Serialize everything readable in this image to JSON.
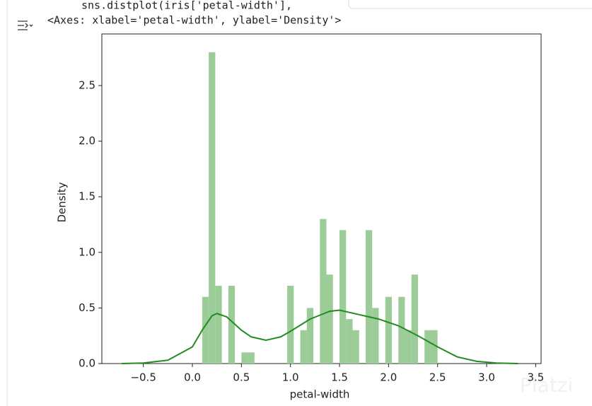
{
  "code": [
    "sns.distplot(iris['petal-width'],"
  ],
  "output": "<Axes: xlabel='petal-width', ylabel='Density'>",
  "watermark": "Platzi",
  "chart_data": {
    "type": "histogram",
    "xlabel": "petal-width",
    "ylabel": "Density",
    "bins": [
      0.1,
      0.1667,
      0.2333,
      0.3,
      0.3667,
      0.4333,
      0.5,
      0.5667,
      0.6333,
      0.7,
      0.7667,
      0.8333,
      0.9,
      0.9667,
      1.0333,
      1.1,
      1.1667,
      1.2333,
      1.3,
      1.3667,
      1.4333,
      1.5,
      1.5667,
      1.6333,
      1.7,
      1.7667,
      1.8333,
      1.9,
      1.9667,
      2.0333,
      2.1,
      2.1667,
      2.2333,
      2.3,
      2.3667,
      2.4333,
      2.5
    ],
    "values": [
      0.6,
      2.8,
      0.7,
      0,
      0.7,
      0,
      0.1,
      0.1,
      0,
      0,
      0,
      0,
      0,
      0.7,
      0,
      0.3,
      0.5,
      0,
      1.3,
      0.8,
      0,
      1.2,
      0.4,
      0.3,
      0,
      1.2,
      0.5,
      0,
      0.6,
      0,
      0.6,
      0.3,
      0.8,
      0,
      0.3,
      0.3
    ],
    "color": "#9ccc97",
    "kde": {
      "color": "#228b22",
      "x": [
        -0.72,
        -0.5,
        -0.25,
        0,
        0.1,
        0.2,
        0.25,
        0.35,
        0.5,
        0.6,
        0.75,
        0.9,
        1.0,
        1.2,
        1.4,
        1.5,
        1.7,
        1.9,
        2.1,
        2.3,
        2.5,
        2.7,
        2.9,
        3.1,
        3.32
      ],
      "y": [
        0,
        0.005,
        0.03,
        0.15,
        0.3,
        0.43,
        0.45,
        0.42,
        0.3,
        0.24,
        0.21,
        0.24,
        0.29,
        0.4,
        0.47,
        0.48,
        0.44,
        0.4,
        0.34,
        0.25,
        0.15,
        0.06,
        0.02,
        0.005,
        0
      ]
    },
    "xlim": [
      -0.923,
      3.555
    ],
    "ylim": [
      0,
      2.964
    ],
    "xticks": [
      {
        "value": -0.5,
        "label": "−0.5"
      },
      {
        "value": 0,
        "label": "0.0"
      },
      0.5,
      {
        "value": 1,
        "label": "1.0"
      },
      1.5,
      {
        "value": 2,
        "label": "2.0"
      },
      2.5,
      {
        "value": 3,
        "label": "3.0"
      },
      3.5
    ],
    "yticks": [
      {
        "value": 0,
        "label": "0.0"
      },
      0.5,
      {
        "value": 1,
        "label": "1.0"
      },
      1.5,
      {
        "value": 2,
        "label": "2.0"
      },
      2.5
    ]
  }
}
